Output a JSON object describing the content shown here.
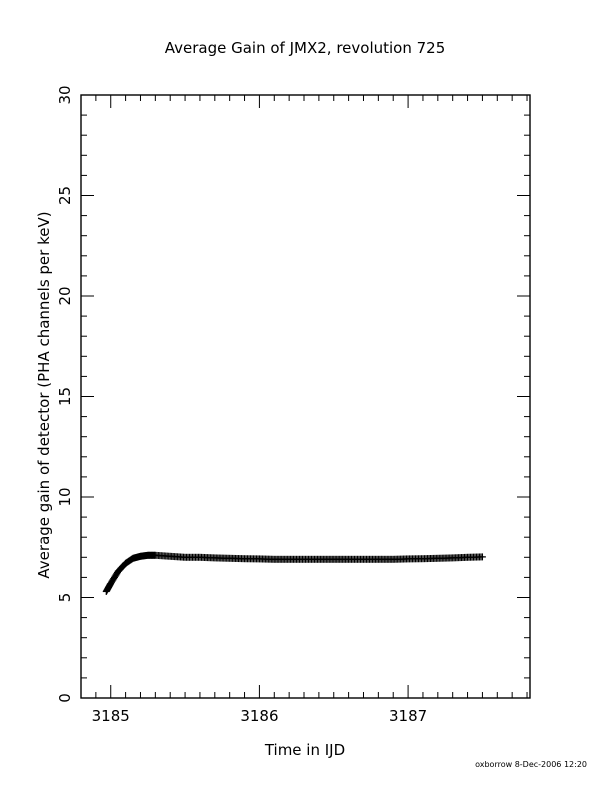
{
  "chart_data": {
    "type": "scatter",
    "title": "Average Gain of JMX2, revolution 725",
    "xlabel": "Time in IJD",
    "ylabel": "Average gain of detector (PHA channels per keV)",
    "xlim": [
      3184.8,
      3187.82
    ],
    "ylim": [
      0,
      30
    ],
    "x_ticks": [
      "3185",
      "3186",
      "3187"
    ],
    "y_ticks": [
      "0",
      "5",
      "10",
      "15",
      "20",
      "25",
      "30"
    ],
    "grid": false,
    "legend": "none",
    "marker": "plus",
    "color": "#000000",
    "series": [
      {
        "x": [
          3184.97,
          3185.0,
          3185.05,
          3185.1,
          3185.15,
          3185.2,
          3185.25,
          3185.3,
          3185.4,
          3185.5,
          3185.6,
          3185.7,
          3185.8,
          3185.9,
          3186.0,
          3186.1,
          3186.2,
          3186.3,
          3186.4,
          3186.5,
          3186.6,
          3186.7,
          3186.8,
          3186.9,
          3187.0,
          3187.1,
          3187.2,
          3187.3,
          3187.4,
          3187.5
        ],
        "y": [
          5.3,
          5.7,
          6.3,
          6.7,
          6.95,
          7.05,
          7.1,
          7.1,
          7.05,
          7.0,
          7.0,
          6.97,
          6.95,
          6.93,
          6.92,
          6.9,
          6.9,
          6.9,
          6.9,
          6.9,
          6.9,
          6.9,
          6.9,
          6.9,
          6.92,
          6.93,
          6.95,
          6.97,
          7.0,
          7.02
        ]
      }
    ]
  },
  "footer": {
    "credit": "oxborrow  8-Dec-2006 12:20"
  }
}
